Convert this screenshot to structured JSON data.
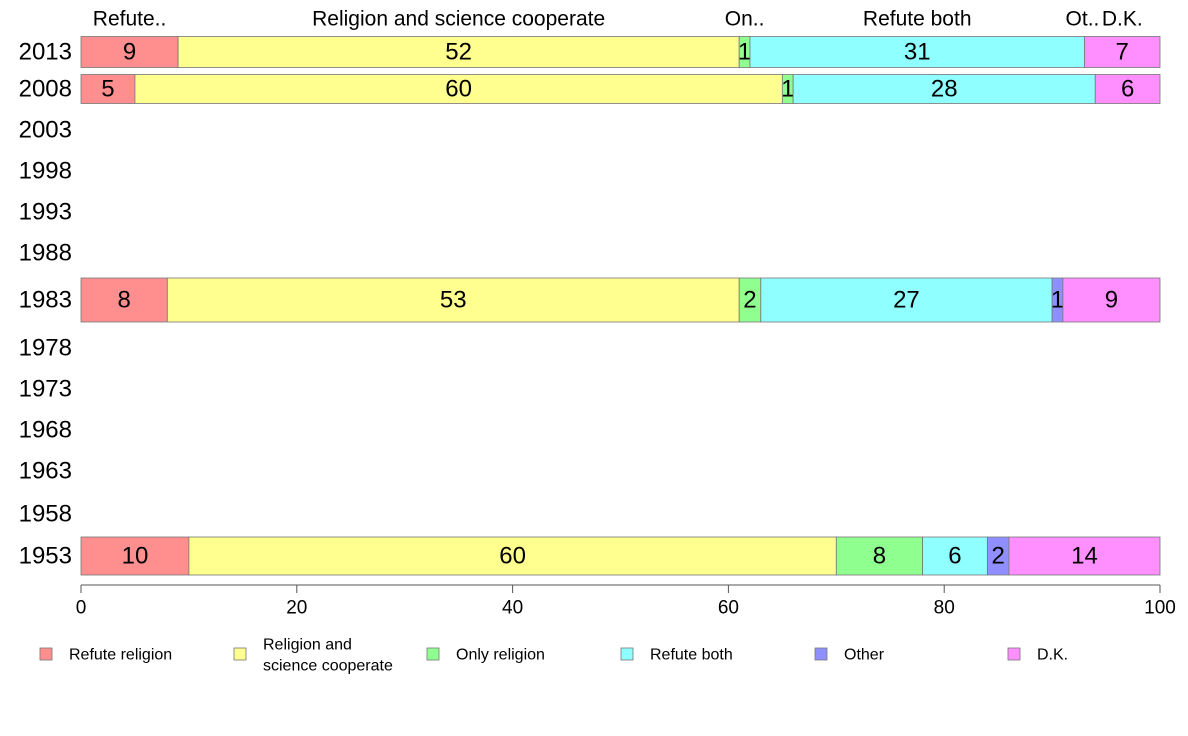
{
  "chart_data": {
    "type": "bar",
    "orientation": "horizontal",
    "stacked": true,
    "years": [
      "2013",
      "2008",
      "2003",
      "1998",
      "1993",
      "1988",
      "1983",
      "1978",
      "1973",
      "1968",
      "1963",
      "1958",
      "1953"
    ],
    "series": [
      {
        "name": "Refute religion",
        "legend_lines": [
          "Refute religion"
        ],
        "top_label": "Refute..",
        "color": "#ff8f8f"
      },
      {
        "name": "Religion and science cooperate",
        "legend_lines": [
          "Religion and",
          "science cooperate"
        ],
        "top_label": "Religion and science cooperate",
        "color": "#ffff8f"
      },
      {
        "name": "Only religion",
        "legend_lines": [
          "Only religion"
        ],
        "top_label": "On..",
        "color": "#8fff8f"
      },
      {
        "name": "Refute both",
        "legend_lines": [
          "Refute both"
        ],
        "top_label": "Refute both",
        "color": "#8fffff"
      },
      {
        "name": "Other",
        "legend_lines": [
          "Other"
        ],
        "top_label": "Ot..",
        "color": "#8f8fff"
      },
      {
        "name": "D.K.",
        "legend_lines": [
          "D.K."
        ],
        "top_label": "D.K.",
        "color": "#ff8fff"
      }
    ],
    "rows": [
      {
        "year": "2013",
        "values": [
          9,
          52,
          1,
          31,
          0,
          7
        ],
        "labels": [
          "9",
          "52",
          "1",
          "31",
          "",
          "7"
        ]
      },
      {
        "year": "2008",
        "values": [
          5,
          60,
          1,
          28,
          0,
          6
        ],
        "labels": [
          "5",
          "60",
          "1",
          "28",
          "",
          "6"
        ]
      },
      {
        "year": "1983",
        "values": [
          8,
          53,
          2,
          27,
          1,
          9
        ],
        "labels": [
          "8",
          "53",
          "2",
          "27",
          "1",
          "9"
        ]
      },
      {
        "year": "1953",
        "values": [
          10,
          60,
          8,
          6,
          2,
          14
        ],
        "labels": [
          "10",
          "60",
          "8",
          "6",
          "2",
          "14"
        ]
      }
    ],
    "xlim": [
      0,
      100
    ],
    "xticks": [
      "0",
      "20",
      "40",
      "60",
      "80",
      "100"
    ],
    "legend_position": "bottom"
  }
}
